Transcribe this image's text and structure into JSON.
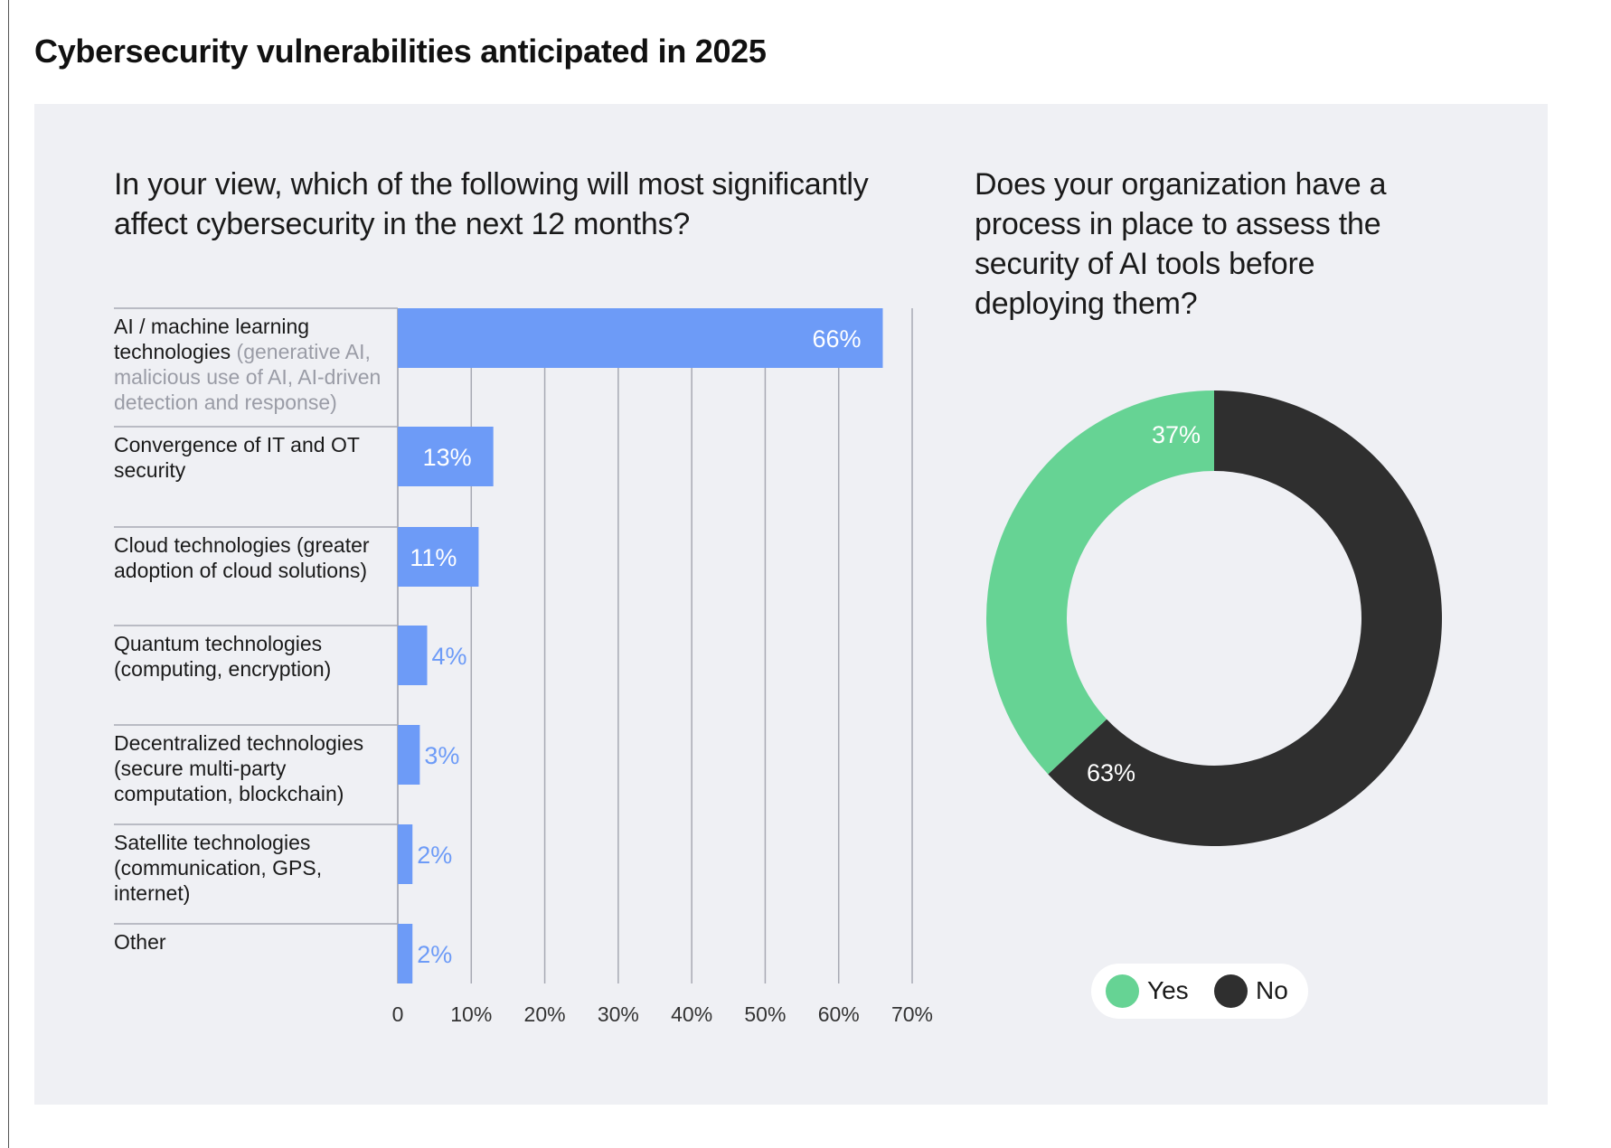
{
  "title": "Cybersecurity vulnerabilities anticipated in 2025",
  "colors": {
    "bar": "#6d9bf7",
    "yes": "#66d394",
    "no": "#2f2f2f",
    "panel": "#eff0f4"
  },
  "chart_data": [
    {
      "type": "bar",
      "orientation": "horizontal",
      "title": "In your view, which of the following will most significantly affect cybersecurity in the next 12 months?",
      "categories": [
        {
          "label": "AI / machine learning technologies",
          "note": "(generative AI, malicious use of AI, AI-driven detection and response)"
        },
        {
          "label": "Convergence of IT and OT security",
          "note": ""
        },
        {
          "label": "Cloud technologies (greater adoption of cloud solutions)",
          "note": ""
        },
        {
          "label": "Quantum technologies (computing, encryption)",
          "note": ""
        },
        {
          "label": "Decentralized technologies (secure multi-party computation, blockchain)",
          "note": ""
        },
        {
          "label": "Satellite technologies (communication, GPS, internet)",
          "note": ""
        },
        {
          "label": "Other",
          "note": ""
        }
      ],
      "values": [
        66,
        13,
        11,
        4,
        3,
        2,
        2
      ],
      "data_labels": [
        "66%",
        "13%",
        "11%",
        "4%",
        "3%",
        "2%",
        "2%"
      ],
      "xlim": [
        0,
        70
      ],
      "xticks": [
        "0",
        "10%",
        "20%",
        "30%",
        "40%",
        "50%",
        "60%",
        "70%"
      ],
      "grid": true
    },
    {
      "type": "pie",
      "donut": true,
      "title": "Does your organization have a process in place to assess the security of AI tools before deploying them?",
      "slices": [
        {
          "name": "Yes",
          "value": 37,
          "label": "37%"
        },
        {
          "name": "No",
          "value": 63,
          "label": "63%"
        }
      ],
      "legend": "bottom"
    }
  ]
}
